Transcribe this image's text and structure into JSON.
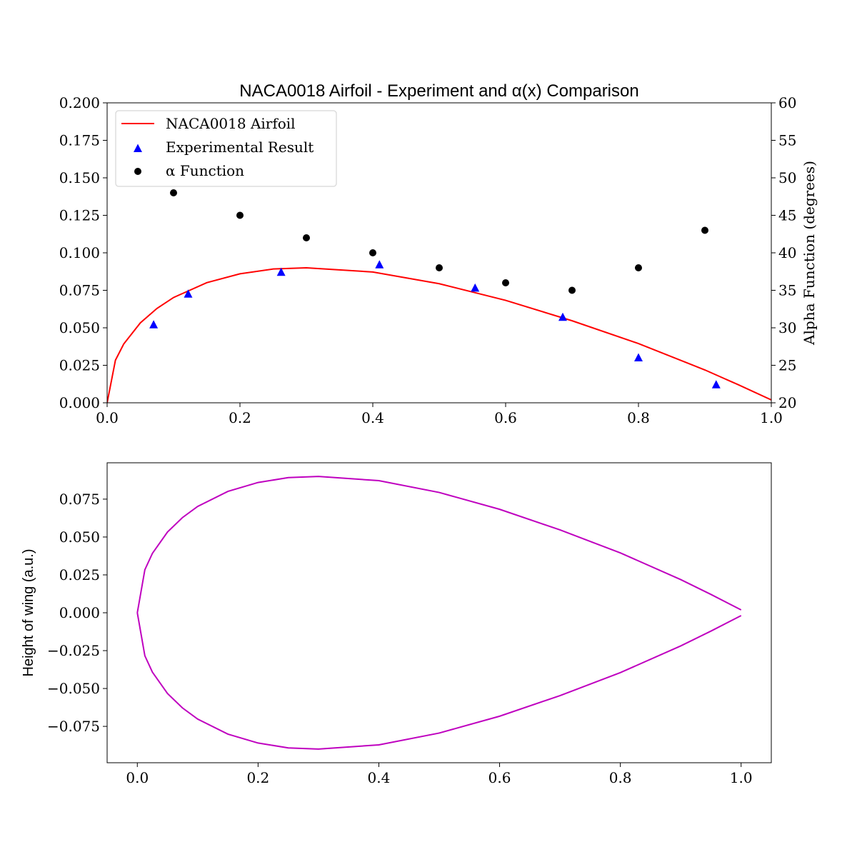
{
  "chart_data": [
    {
      "type": "line",
      "title": "NACA0018 Airfoil - Experiment and α(x) Comparison",
      "xlabel": "",
      "ylabel": "",
      "ylabel_right": "Alpha Function (degrees)",
      "xlim": [
        0.0,
        1.0
      ],
      "ylim": [
        0.0,
        0.2
      ],
      "ylim_right": [
        20,
        60
      ],
      "x_ticks": [
        "0.0",
        "0.2",
        "0.4",
        "0.6",
        "0.8",
        "1.0"
      ],
      "y_ticks": [
        "0.000",
        "0.025",
        "0.050",
        "0.075",
        "0.100",
        "0.125",
        "0.150",
        "0.175",
        "0.200"
      ],
      "y_ticks_right": [
        "20",
        "25",
        "30",
        "35",
        "40",
        "45",
        "50",
        "55",
        "60"
      ],
      "grid": false,
      "legend_position": "top-left",
      "series": [
        {
          "name": "NACA0018 Airfoil",
          "kind": "line",
          "axis": "left",
          "color": "#ff0000",
          "points": [
            [
              0.0,
              0.0
            ],
            [
              0.0125,
              0.0284
            ],
            [
              0.025,
              0.0392
            ],
            [
              0.05,
              0.0533
            ],
            [
              0.075,
              0.0629
            ],
            [
              0.1,
              0.0702
            ],
            [
              0.15,
              0.0801
            ],
            [
              0.2,
              0.086
            ],
            [
              0.25,
              0.0892
            ],
            [
              0.3,
              0.09
            ],
            [
              0.4,
              0.0872
            ],
            [
              0.5,
              0.0794
            ],
            [
              0.6,
              0.0683
            ],
            [
              0.7,
              0.0547
            ],
            [
              0.8,
              0.0395
            ],
            [
              0.9,
              0.0219
            ],
            [
              0.95,
              0.0121
            ],
            [
              1.0,
              0.0019
            ]
          ]
        },
        {
          "name": "Experimental Result",
          "kind": "scatter",
          "marker": "triangle",
          "axis": "left",
          "color": "#0000ff",
          "points": [
            [
              0.07,
              0.052
            ],
            [
              0.122,
              0.0725
            ],
            [
              0.262,
              0.087
            ],
            [
              0.41,
              0.092
            ],
            [
              0.554,
              0.0765
            ],
            [
              0.686,
              0.057
            ],
            [
              0.8,
              0.03
            ],
            [
              0.917,
              0.012
            ]
          ]
        },
        {
          "name": "α Function",
          "kind": "scatter",
          "marker": "circle",
          "axis": "right",
          "color": "#000000",
          "points": [
            [
              0.1,
              48
            ],
            [
              0.2,
              45
            ],
            [
              0.3,
              42
            ],
            [
              0.4,
              40
            ],
            [
              0.5,
              38
            ],
            [
              0.6,
              36
            ],
            [
              0.7,
              35
            ],
            [
              0.8,
              38
            ],
            [
              0.9,
              43
            ]
          ]
        }
      ]
    },
    {
      "type": "line",
      "title": "",
      "xlabel": "",
      "ylabel": "Height of wing (a.u.)",
      "xlim": [
        -0.05,
        1.05
      ],
      "ylim": [
        -0.099,
        0.099
      ],
      "x_ticks": [
        "0.0",
        "0.2",
        "0.4",
        "0.6",
        "0.8",
        "1.0"
      ],
      "y_ticks": [
        "−0.075",
        "−0.050",
        "−0.025",
        "0.000",
        "0.025",
        "0.050",
        "0.075"
      ],
      "grid": false,
      "series": [
        {
          "kind": "line",
          "color": "#bf00bf",
          "upper": [
            [
              0.0,
              0.0
            ],
            [
              0.0125,
              0.0284
            ],
            [
              0.025,
              0.0392
            ],
            [
              0.05,
              0.0533
            ],
            [
              0.075,
              0.0629
            ],
            [
              0.1,
              0.0702
            ],
            [
              0.15,
              0.0801
            ],
            [
              0.2,
              0.086
            ],
            [
              0.25,
              0.0892
            ],
            [
              0.3,
              0.09
            ],
            [
              0.4,
              0.0872
            ],
            [
              0.5,
              0.0794
            ],
            [
              0.6,
              0.0683
            ],
            [
              0.7,
              0.0547
            ],
            [
              0.8,
              0.0395
            ],
            [
              0.9,
              0.0219
            ],
            [
              0.95,
              0.0121
            ],
            [
              1.0,
              0.0019
            ]
          ],
          "lower": [
            [
              0.0,
              0.0
            ],
            [
              0.0125,
              -0.0284
            ],
            [
              0.025,
              -0.0392
            ],
            [
              0.05,
              -0.0533
            ],
            [
              0.075,
              -0.0629
            ],
            [
              0.1,
              -0.0702
            ],
            [
              0.15,
              -0.0801
            ],
            [
              0.2,
              -0.086
            ],
            [
              0.25,
              -0.0892
            ],
            [
              0.3,
              -0.09
            ],
            [
              0.4,
              -0.0872
            ],
            [
              0.5,
              -0.0794
            ],
            [
              0.6,
              -0.0683
            ],
            [
              0.7,
              -0.0547
            ],
            [
              0.8,
              -0.0395
            ],
            [
              0.9,
              -0.0219
            ],
            [
              0.95,
              -0.0121
            ],
            [
              1.0,
              -0.0019
            ]
          ]
        }
      ]
    }
  ]
}
